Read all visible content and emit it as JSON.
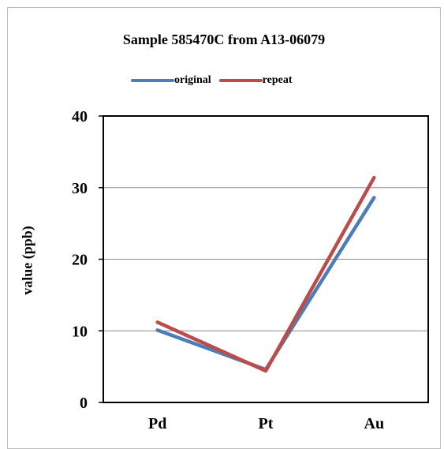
{
  "chart_data": {
    "type": "line",
    "title": "Sample 585470C from A13-06079",
    "xlabel": "",
    "ylabel": "value (ppb)",
    "categories": [
      "Pd",
      "Pt",
      "Au"
    ],
    "ylim": [
      0,
      40
    ],
    "yticks": [
      0,
      10,
      20,
      30,
      40
    ],
    "grid": true,
    "legend_position": "top",
    "series": [
      {
        "name": "original",
        "values": [
          10.1,
          4.6,
          28.6
        ],
        "color": "#4a7ebb"
      },
      {
        "name": "repeat",
        "values": [
          11.2,
          4.4,
          31.4
        ],
        "color": "#be4b48"
      }
    ]
  }
}
